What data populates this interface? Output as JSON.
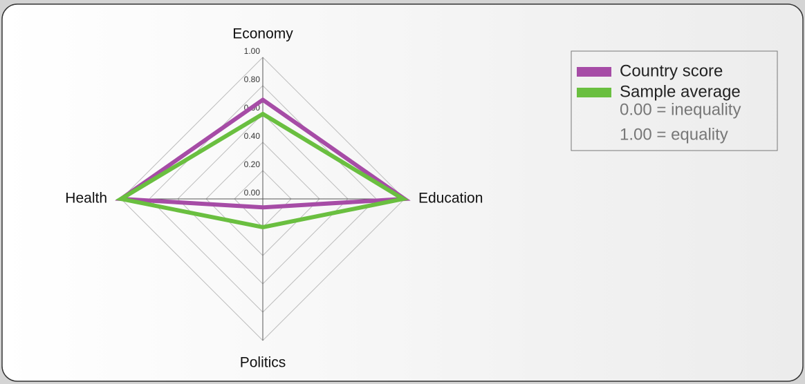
{
  "chart_data": {
    "type": "radar",
    "categories": [
      "Economy",
      "Education",
      "Politics",
      "Health"
    ],
    "series": [
      {
        "name": "Country score",
        "color": "#a64ca6",
        "values": [
          0.7,
          1.0,
          0.06,
          1.0
        ]
      },
      {
        "name": "Sample average",
        "color": "#6abf40",
        "values": [
          0.6,
          0.99,
          0.2,
          1.0
        ]
      }
    ],
    "ylim": [
      0,
      1
    ],
    "yticks": [
      {
        "value": 0,
        "label": "0.00"
      },
      {
        "value": 0.2,
        "label": "0.20"
      },
      {
        "value": 0.4,
        "label": "0.40"
      },
      {
        "value": 0.6,
        "label": "0.60"
      },
      {
        "value": 0.8,
        "label": "0.80"
      },
      {
        "value": 1,
        "label": "1.00"
      }
    ],
    "grid": true,
    "legend_position": "upper right",
    "annotations": [
      "0.00 = inequality",
      "1.00 = equality"
    ]
  }
}
